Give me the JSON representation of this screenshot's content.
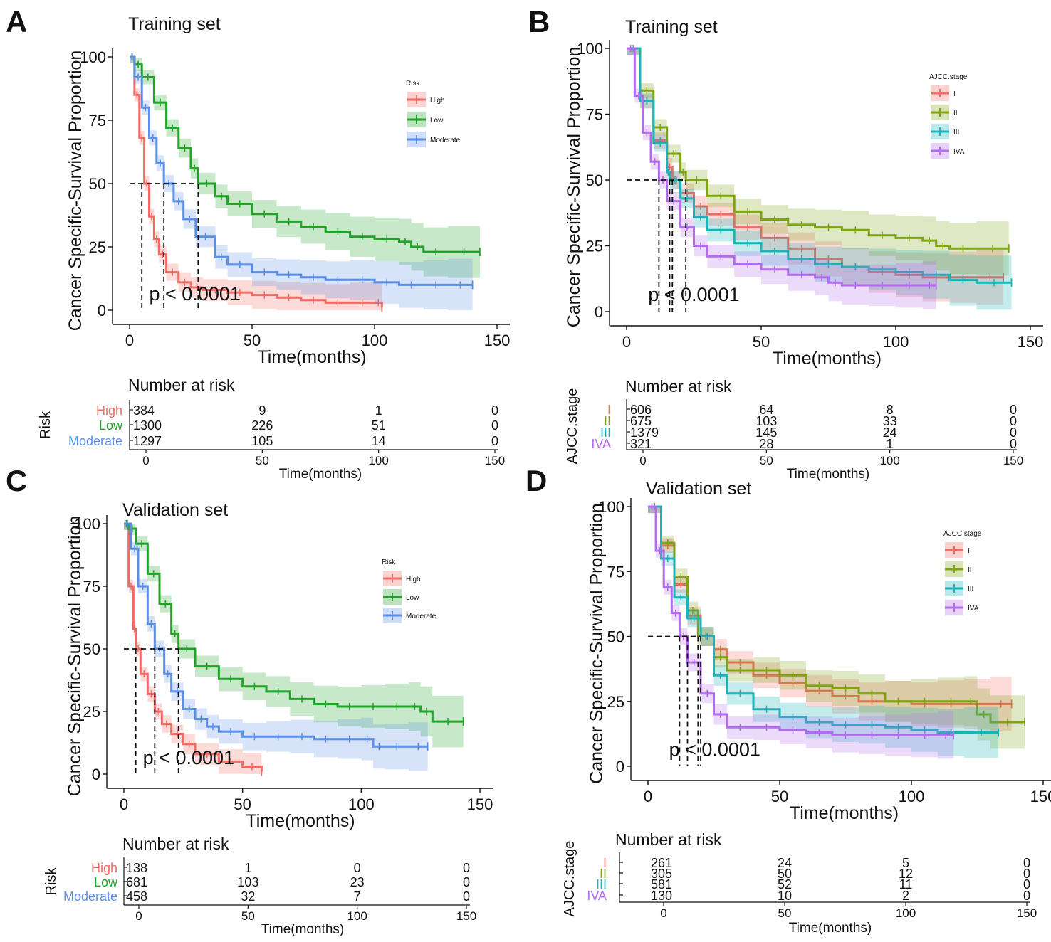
{
  "figure": {
    "p_value_text": "p < 0.0001",
    "number_at_risk_label": "Number at risk",
    "panels": [
      {
        "letter": "A",
        "title": "Training set",
        "legend_title": "Risk",
        "risk_table_title": "Risk",
        "risk_times": [
          0,
          50,
          100,
          150
        ],
        "risk_rows": [
          {
            "label": "High",
            "counts": [
              "384",
              "9",
              "1",
              "0"
            ]
          },
          {
            "label": "Low",
            "counts": [
              "1300",
              "226",
              "51",
              "0"
            ]
          },
          {
            "label": "Moderate",
            "counts": [
              "1297",
              "105",
              "14",
              "0"
            ]
          }
        ]
      },
      {
        "letter": "B",
        "title": "Training set",
        "legend_title": "AJCC.stage",
        "risk_table_title": "AJCC.stage",
        "risk_times": [
          0,
          50,
          100,
          150
        ],
        "risk_rows": [
          {
            "label": "I",
            "counts": [
              "606",
              "64",
              "8",
              "0"
            ]
          },
          {
            "label": "II",
            "counts": [
              "675",
              "103",
              "33",
              "0"
            ]
          },
          {
            "label": "III",
            "counts": [
              "1379",
              "145",
              "24",
              "0"
            ]
          },
          {
            "label": "IVA",
            "counts": [
              "321",
              "28",
              "1",
              "0"
            ]
          }
        ]
      },
      {
        "letter": "C",
        "title": "Validation set",
        "legend_title": "Risk",
        "risk_table_title": "Risk",
        "risk_times": [
          0,
          50,
          100,
          150
        ],
        "risk_rows": [
          {
            "label": "High",
            "counts": [
              "138",
              "1",
              "0",
              "0"
            ]
          },
          {
            "label": "Low",
            "counts": [
              "681",
              "103",
              "23",
              "0"
            ]
          },
          {
            "label": "Moderate",
            "counts": [
              "458",
              "32",
              "7",
              "0"
            ]
          }
        ]
      },
      {
        "letter": "D",
        "title": "Validation set",
        "legend_title": "AJCC.stage",
        "risk_table_title": "AJCC.stage",
        "risk_times": [
          0,
          50,
          100,
          150
        ],
        "risk_rows": [
          {
            "label": "I",
            "counts": [
              "261",
              "24",
              "5",
              "0"
            ]
          },
          {
            "label": "II",
            "counts": [
              "305",
              "50",
              "12",
              "0"
            ]
          },
          {
            "label": "III",
            "counts": [
              "581",
              "52",
              "11",
              "0"
            ]
          },
          {
            "label": "IVA",
            "counts": [
              "130",
              "10",
              "2",
              "0"
            ]
          }
        ]
      }
    ]
  },
  "chart_data": [
    {
      "type": "line",
      "panel": "A",
      "title": "Training set",
      "xlabel": "Time(months)",
      "ylabel": "Cancer Specific-Survival Proportion",
      "xlim": [
        0,
        150
      ],
      "ylim": [
        0,
        100
      ],
      "xticks": [
        0,
        50,
        100,
        150
      ],
      "yticks": [
        0,
        25,
        50,
        75,
        100
      ],
      "grid": false,
      "annotation": "p < 0.0001",
      "median_survival": [
        5,
        14,
        28
      ],
      "series": [
        {
          "name": "High",
          "color": "#ef6b63",
          "x": [
            0,
            2,
            4,
            6,
            8,
            10,
            12,
            15,
            20,
            25,
            30,
            40,
            50,
            60,
            70,
            80,
            90,
            100,
            103
          ],
          "y": [
            100,
            85,
            68,
            50,
            37,
            28,
            22,
            15,
            11,
            9,
            8,
            7,
            6,
            5,
            4,
            3,
            3,
            3,
            1
          ]
        },
        {
          "name": "Low",
          "color": "#21a328",
          "x": [
            0,
            2,
            5,
            10,
            15,
            20,
            25,
            28,
            35,
            40,
            50,
            60,
            70,
            80,
            90,
            100,
            110,
            115,
            120,
            130,
            143
          ],
          "y": [
            100,
            97,
            92,
            82,
            72,
            64,
            56,
            50,
            45,
            42,
            38,
            35,
            33,
            31,
            29,
            28,
            27,
            25,
            23,
            23,
            23
          ]
        },
        {
          "name": "Moderate",
          "color": "#5b8fe6",
          "x": [
            0,
            2,
            5,
            8,
            11,
            14,
            18,
            22,
            27,
            35,
            40,
            50,
            60,
            70,
            80,
            90,
            100,
            110,
            120,
            130,
            140
          ],
          "y": [
            100,
            92,
            80,
            68,
            58,
            50,
            43,
            36,
            29,
            21,
            18,
            15,
            14,
            13,
            12,
            12,
            11,
            10,
            10,
            10,
            10
          ]
        }
      ]
    },
    {
      "type": "line",
      "panel": "B",
      "title": "Training set",
      "xlabel": "Time(months)",
      "ylabel": "Cancer Specific-Survival Proportion",
      "xlim": [
        0,
        150
      ],
      "ylim": [
        0,
        100
      ],
      "xticks": [
        0,
        50,
        100,
        150
      ],
      "yticks": [
        0,
        25,
        50,
        75,
        100
      ],
      "grid": false,
      "annotation": "p < 0.0001",
      "median_survival": [
        12,
        16,
        17,
        22
      ],
      "series": [
        {
          "name": "I",
          "color": "#ef6b63",
          "x": [
            0,
            5,
            10,
            15,
            17,
            20,
            25,
            30,
            40,
            50,
            60,
            70,
            80,
            90,
            100,
            110,
            120,
            130,
            140
          ],
          "y": [
            100,
            80,
            65,
            55,
            50,
            45,
            40,
            37,
            32,
            28,
            24,
            20,
            17,
            15,
            14,
            13,
            13,
            13,
            13
          ]
        },
        {
          "name": "II",
          "color": "#7fa413",
          "x": [
            0,
            5,
            10,
            15,
            20,
            22,
            30,
            40,
            50,
            60,
            70,
            80,
            90,
            100,
            110,
            115,
            120,
            130,
            142
          ],
          "y": [
            100,
            84,
            70,
            60,
            53,
            50,
            44,
            38,
            35,
            33,
            32,
            31,
            29,
            28,
            27,
            25,
            24,
            24,
            24
          ]
        },
        {
          "name": "III",
          "color": "#19b3b8",
          "x": [
            0,
            5,
            10,
            15,
            16,
            20,
            25,
            30,
            40,
            50,
            60,
            70,
            80,
            90,
            100,
            110,
            120,
            130,
            143
          ],
          "y": [
            100,
            80,
            64,
            53,
            50,
            43,
            36,
            31,
            26,
            23,
            20,
            18,
            17,
            16,
            15,
            14,
            12,
            11,
            11
          ]
        },
        {
          "name": "IVA",
          "color": "#b36bee",
          "x": [
            0,
            3,
            6,
            9,
            12,
            15,
            20,
            25,
            30,
            40,
            50,
            60,
            70,
            75,
            80,
            90,
            100,
            110,
            115
          ],
          "y": [
            100,
            82,
            68,
            57,
            50,
            42,
            32,
            25,
            21,
            18,
            16,
            14,
            13,
            11,
            10,
            10,
            10,
            10,
            10
          ]
        }
      ]
    },
    {
      "type": "line",
      "panel": "C",
      "title": "Validation set",
      "xlabel": "Time(months)",
      "ylabel": "Cancer Specific-Survival Proportion",
      "xlim": [
        0,
        150
      ],
      "ylim": [
        0,
        100
      ],
      "xticks": [
        0,
        50,
        100,
        150
      ],
      "yticks": [
        0,
        25,
        50,
        75,
        100
      ],
      "grid": false,
      "annotation": "p < 0.0001",
      "median_survival": [
        5,
        13,
        23
      ],
      "series": [
        {
          "name": "High",
          "color": "#ef6b63",
          "x": [
            0,
            2,
            4,
            5,
            7,
            10,
            13,
            16,
            20,
            25,
            30,
            40,
            50,
            58
          ],
          "y": [
            100,
            75,
            58,
            50,
            40,
            32,
            25,
            20,
            16,
            12,
            8,
            5,
            3,
            1
          ]
        },
        {
          "name": "Low",
          "color": "#21a328",
          "x": [
            0,
            2,
            5,
            10,
            15,
            20,
            23,
            30,
            40,
            50,
            60,
            70,
            80,
            90,
            100,
            110,
            120,
            125,
            130,
            143
          ],
          "y": [
            100,
            98,
            92,
            80,
            68,
            56,
            50,
            43,
            38,
            35,
            33,
            30,
            28,
            27,
            27,
            27,
            27,
            25,
            21,
            21
          ]
        },
        {
          "name": "Moderate",
          "color": "#5b8fe6",
          "x": [
            0,
            3,
            6,
            10,
            13,
            17,
            20,
            25,
            30,
            35,
            40,
            50,
            60,
            70,
            80,
            90,
            100,
            105,
            110,
            120,
            128
          ],
          "y": [
            100,
            90,
            75,
            60,
            50,
            40,
            33,
            26,
            22,
            19,
            17,
            15,
            15,
            15,
            14,
            14,
            14,
            11,
            11,
            11,
            11
          ]
        }
      ]
    },
    {
      "type": "line",
      "panel": "D",
      "title": "Validation set",
      "xlabel": "Time(months)",
      "ylabel": "Cancer Specific-Survival Proportion",
      "xlim": [
        0,
        150
      ],
      "ylim": [
        0,
        100
      ],
      "xticks": [
        0,
        50,
        100,
        150
      ],
      "yticks": [
        0,
        25,
        50,
        75,
        100
      ],
      "grid": false,
      "annotation": "p < 0.0001",
      "median_survival": [
        12,
        15,
        19,
        20
      ],
      "series": [
        {
          "name": "I",
          "color": "#ef6b63",
          "x": [
            0,
            5,
            10,
            15,
            20,
            25,
            30,
            40,
            50,
            60,
            70,
            80,
            90,
            100,
            110,
            120,
            130,
            138
          ],
          "y": [
            100,
            85,
            70,
            58,
            50,
            45,
            40,
            35,
            32,
            29,
            27,
            25,
            25,
            24,
            24,
            24,
            24,
            24
          ]
        },
        {
          "name": "II",
          "color": "#7fa413",
          "x": [
            0,
            5,
            10,
            15,
            19,
            25,
            30,
            40,
            50,
            60,
            70,
            80,
            90,
            100,
            110,
            120,
            125,
            130,
            143
          ],
          "y": [
            100,
            86,
            73,
            60,
            50,
            42,
            37,
            37,
            35,
            31,
            30,
            28,
            25,
            25,
            25,
            25,
            20,
            17,
            17
          ]
        },
        {
          "name": "III",
          "color": "#19b3b8",
          "x": [
            0,
            5,
            10,
            15,
            20,
            25,
            30,
            40,
            50,
            60,
            70,
            80,
            90,
            100,
            110,
            120,
            133
          ],
          "y": [
            100,
            80,
            65,
            57,
            50,
            35,
            28,
            22,
            19,
            17,
            16,
            16,
            15,
            14,
            13,
            13,
            13
          ]
        },
        {
          "name": "IVA",
          "color": "#b36bee",
          "x": [
            0,
            3,
            6,
            9,
            12,
            15,
            20,
            25,
            30,
            40,
            50,
            60,
            70,
            80,
            90,
            100,
            110,
            116
          ],
          "y": [
            100,
            83,
            69,
            59,
            50,
            40,
            28,
            20,
            15,
            15,
            14,
            13,
            12,
            12,
            12,
            12,
            12,
            12
          ]
        }
      ]
    }
  ]
}
